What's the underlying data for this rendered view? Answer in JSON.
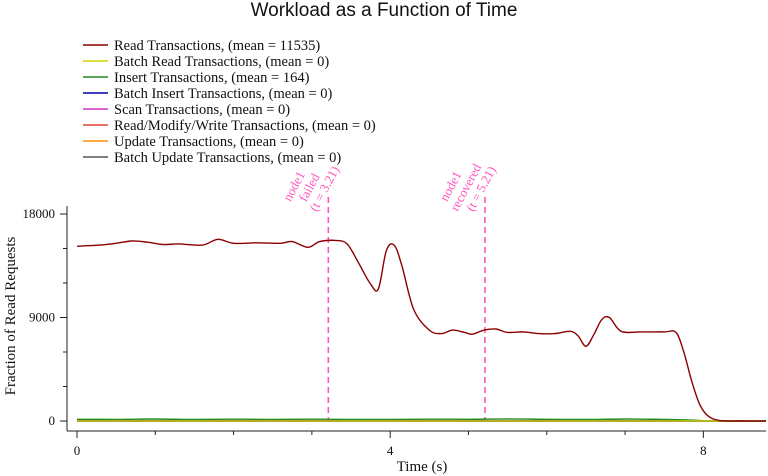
{
  "chart_data": {
    "type": "line",
    "title": "Workload as a Function of Time",
    "xlabel": "Time (s)",
    "ylabel": "Fraction of Read Requests",
    "xlim": [
      0,
      8.8
    ],
    "ylim": [
      0,
      18000
    ],
    "xticks": [
      0,
      4,
      8
    ],
    "yticks": [
      0,
      9000,
      18000
    ],
    "grid": false,
    "legend_placement": "top-left",
    "series": [
      {
        "name": "Read Transactions, (mean = 11535)",
        "color": "#8b0000",
        "points": [
          [
            0,
            15200
          ],
          [
            0.3,
            15300
          ],
          [
            0.5,
            15450
          ],
          [
            0.7,
            15650
          ],
          [
            0.9,
            15550
          ],
          [
            1.1,
            15350
          ],
          [
            1.3,
            15400
          ],
          [
            1.6,
            15300
          ],
          [
            1.8,
            15800
          ],
          [
            2.0,
            15450
          ],
          [
            2.3,
            15500
          ],
          [
            2.6,
            15450
          ],
          [
            2.75,
            15600
          ],
          [
            2.95,
            15100
          ],
          [
            3.1,
            15600
          ],
          [
            3.3,
            15700
          ],
          [
            3.45,
            15400
          ],
          [
            3.6,
            13700
          ],
          [
            3.75,
            11900
          ],
          [
            3.85,
            11500
          ],
          [
            3.95,
            14800
          ],
          [
            4.05,
            15300
          ],
          [
            4.15,
            13500
          ],
          [
            4.3,
            9700
          ],
          [
            4.5,
            7900
          ],
          [
            4.65,
            7600
          ],
          [
            4.8,
            7900
          ],
          [
            4.95,
            7700
          ],
          [
            5.05,
            7550
          ],
          [
            5.2,
            7900
          ],
          [
            5.35,
            8000
          ],
          [
            5.5,
            7700
          ],
          [
            5.7,
            7750
          ],
          [
            5.9,
            7600
          ],
          [
            6.1,
            7600
          ],
          [
            6.3,
            7800
          ],
          [
            6.4,
            7400
          ],
          [
            6.5,
            6500
          ],
          [
            6.6,
            7500
          ],
          [
            6.7,
            8800
          ],
          [
            6.8,
            9000
          ],
          [
            6.95,
            7800
          ],
          [
            7.2,
            7750
          ],
          [
            7.5,
            7750
          ],
          [
            7.65,
            7700
          ],
          [
            7.75,
            6000
          ],
          [
            7.85,
            3500
          ],
          [
            7.95,
            1500
          ],
          [
            8.05,
            500
          ],
          [
            8.2,
            50
          ],
          [
            8.5,
            0
          ],
          [
            8.8,
            0
          ]
        ]
      },
      {
        "name": "Batch Read Transactions, (mean = 0)",
        "color": "#d4d400",
        "points": [
          [
            0,
            0
          ],
          [
            8.8,
            0
          ]
        ]
      },
      {
        "name": "Insert Transactions, (mean = 164)",
        "color": "#228b22",
        "points": [
          [
            0,
            150
          ],
          [
            0.5,
            140
          ],
          [
            1.0,
            170
          ],
          [
            1.5,
            130
          ],
          [
            2.0,
            160
          ],
          [
            2.5,
            140
          ],
          [
            3.0,
            160
          ],
          [
            3.2,
            150
          ],
          [
            3.5,
            130
          ],
          [
            4.0,
            140
          ],
          [
            4.5,
            160
          ],
          [
            5.0,
            150
          ],
          [
            5.5,
            180
          ],
          [
            6.0,
            150
          ],
          [
            6.5,
            130
          ],
          [
            7.0,
            170
          ],
          [
            7.5,
            140
          ],
          [
            7.8,
            100
          ],
          [
            8.0,
            30
          ],
          [
            8.2,
            0
          ],
          [
            8.8,
            0
          ]
        ]
      },
      {
        "name": "Batch Insert Transactions, (mean = 0)",
        "color": "#0000aa",
        "points": [
          [
            0,
            0
          ],
          [
            8.8,
            0
          ]
        ]
      },
      {
        "name": "Scan Transactions, (mean = 0)",
        "color": "#cc33cc",
        "points": [
          [
            0,
            0
          ],
          [
            8.8,
            0
          ]
        ]
      },
      {
        "name": "Read/Modify/Write Transactions, (mean = 0)",
        "color": "#e34234",
        "points": [
          [
            0,
            0
          ],
          [
            8.8,
            0
          ]
        ]
      },
      {
        "name": "Update Transactions, (mean = 0)",
        "color": "#ff8c00",
        "points": [
          [
            0,
            0
          ],
          [
            8.8,
            0
          ]
        ]
      },
      {
        "name": "Batch Update Transactions, (mean = 0)",
        "color": "#555555",
        "points": [
          [
            0,
            0
          ],
          [
            8.8,
            0
          ]
        ]
      }
    ],
    "annotations": [
      {
        "x": 3.21,
        "lines": [
          "node1",
          "failed",
          "(t = 3.21)"
        ],
        "color": "#ff55bb"
      },
      {
        "x": 5.21,
        "lines": [
          "node1",
          "recovered",
          "(t = 5.21)"
        ],
        "color": "#ff55bb"
      }
    ]
  }
}
